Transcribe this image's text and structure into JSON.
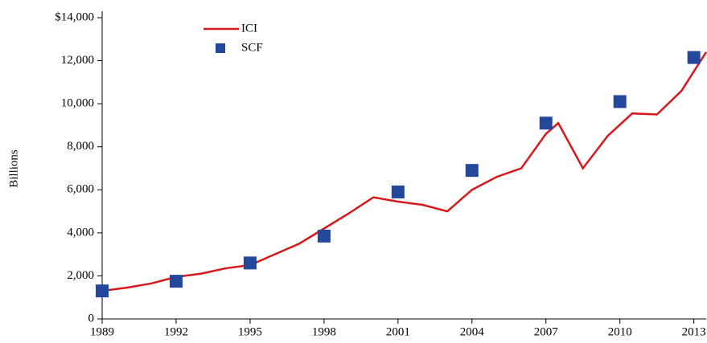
{
  "chart_data": {
    "type": "line",
    "ylabel": "Billions",
    "series": [
      {
        "name": "ICI",
        "type": "line",
        "color": "#d7191c",
        "x": [
          1989,
          1990,
          1991,
          1992,
          1993,
          1994,
          1995,
          1996,
          1997,
          1998,
          1999,
          2000,
          2001,
          2002,
          2003,
          2004,
          2005,
          2006,
          2007,
          2007.5,
          2008.5,
          2009.5,
          2010.5,
          2011.5,
          2012.5,
          2013.5
        ],
        "values": [
          1300,
          1450,
          1650,
          1950,
          2100,
          2350,
          2500,
          3000,
          3500,
          4200,
          4900,
          5650,
          5450,
          5300,
          5000,
          6000,
          6600,
          7000,
          8600,
          9100,
          7000,
          8500,
          9550,
          9500,
          10600,
          12400
        ]
      },
      {
        "name": "SCF",
        "type": "scatter",
        "color": "#23479a",
        "x": [
          1989,
          1992,
          1995,
          1998,
          2001,
          2004,
          2007,
          2010,
          2013
        ],
        "values": [
          1300,
          1750,
          2600,
          3850,
          5900,
          6900,
          9100,
          10100,
          12150
        ]
      }
    ],
    "xlim": [
      1989,
      2013.5
    ],
    "xticks": [
      1989,
      1992,
      1995,
      1998,
      2001,
      2004,
      2007,
      2010,
      2013
    ],
    "ylim": [
      0,
      14000
    ],
    "yticks": [
      0,
      {
        "value": 2000,
        "label": "2,000"
      },
      {
        "value": 4000,
        "label": "4,000"
      },
      {
        "value": 6000,
        "label": "6,000"
      },
      {
        "value": 8000,
        "label": "8,000"
      },
      {
        "value": 10000,
        "label": "10,000"
      },
      {
        "value": 12000,
        "label": "12,000"
      },
      {
        "value": 14000,
        "label": "$14,000"
      }
    ],
    "grid": false,
    "legend": "upper left"
  }
}
